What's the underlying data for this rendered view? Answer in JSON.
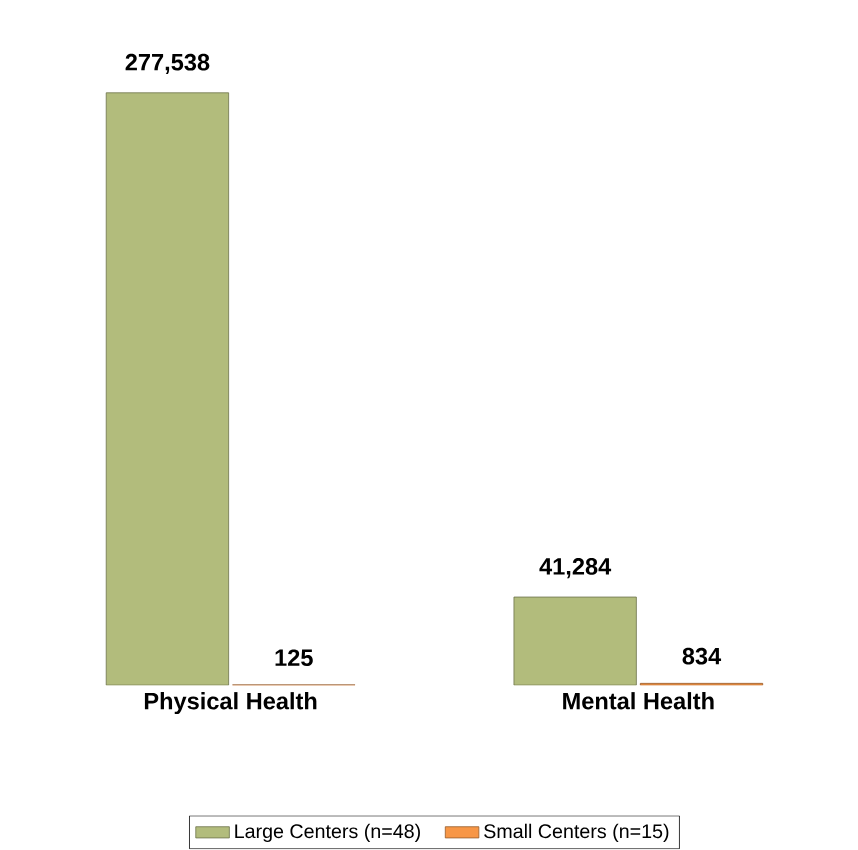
{
  "chart_data": {
    "type": "bar",
    "categories": [
      "Physical Health",
      "Mental Health"
    ],
    "series": [
      {
        "name": "Large Centers (n=48)",
        "color": "#b2bc7c",
        "values": [
          277538,
          41284
        ],
        "value_labels": [
          "277,538",
          "41,284"
        ]
      },
      {
        "name": "Small Centers (n=15)",
        "color": "#f79646",
        "values": [
          125,
          834
        ],
        "value_labels": [
          "125",
          "834"
        ]
      }
    ],
    "legend": "bottom"
  }
}
